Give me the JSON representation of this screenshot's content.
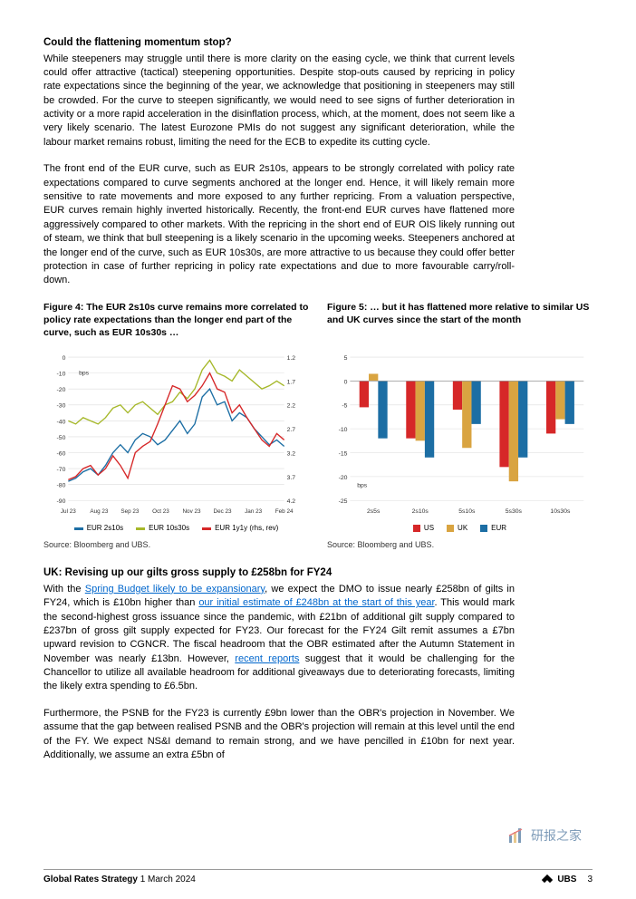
{
  "section1": {
    "heading": "Could the flattening momentum stop?",
    "p1": "While steepeners may struggle until there is more clarity on the easing cycle, we think that current levels could offer attractive (tactical) steepening opportunities. Despite stop-outs caused by repricing in policy rate expectations since the beginning of the year, we acknowledge that positioning in steepeners may still be crowded. For the curve to steepen significantly, we would need to see signs of further deterioration in activity or a more rapid acceleration in the disinflation process, which, at the moment, does not seem like a very likely scenario. The latest Eurozone PMIs do not suggest any significant deterioration, while the labour market remains robust, limiting the need for the ECB to expedite its cutting cycle.",
    "p2": "The front end of the EUR curve, such as EUR 2s10s, appears to be strongly correlated with policy rate expectations compared to curve segments anchored at the longer end. Hence, it will likely remain more sensitive to rate movements and more exposed to any further repricing. From a valuation perspective, EUR curves remain highly inverted historically. Recently, the front-end EUR curves have flattened more aggressively compared to other markets. With the repricing in the short end of EUR OIS likely running out of steam, we think that bull steepening is a likely scenario in the upcoming weeks. Steepeners anchored at the longer end of the curve, such as EUR 10s30s, are more attractive to us because they could offer better protection in case of further repricing in policy rate expectations and due to more favourable carry/roll-down."
  },
  "fig4": {
    "title": "Figure 4: The EUR 2s10s curve remains more correlated to policy rate expectations than the longer end part of the curve, such as EUR 10s30s …",
    "source": "Source: Bloomberg and UBS.",
    "ylabel": "bps",
    "xlabels": [
      "Jul 23",
      "Aug 23",
      "Sep 23",
      "Oct 23",
      "Nov 23",
      "Dec 23",
      "Jan 23",
      "Feb 24"
    ],
    "yticks_left": [
      0,
      -10,
      -20,
      -30,
      -40,
      -50,
      -60,
      -70,
      -80,
      -90
    ],
    "yticks_right": [
      "1.2",
      "1.7",
      "2.2",
      "2.7",
      "3.2",
      "3.7",
      "4.2"
    ],
    "colors": {
      "s1": "#1c6ea4",
      "s2": "#a6b82a",
      "s3": "#d62728"
    },
    "series_labels": [
      "EUR 2s10s",
      "EUR 10s30s",
      "EUR 1y1y (rhs, rev)"
    ],
    "grid_color": "#dcdcdc",
    "s1": [
      -78,
      -76,
      -72,
      -70,
      -74,
      -68,
      -60,
      -55,
      -60,
      -52,
      -48,
      -50,
      -55,
      -52,
      -46,
      -40,
      -48,
      -42,
      -25,
      -20,
      -30,
      -28,
      -40,
      -35,
      -38,
      -45,
      -50,
      -55,
      -52,
      -56
    ],
    "s2": [
      -40,
      -42,
      -38,
      -40,
      -42,
      -38,
      -32,
      -30,
      -35,
      -30,
      -28,
      -32,
      -36,
      -30,
      -28,
      -22,
      -26,
      -20,
      -8,
      -2,
      -10,
      -12,
      -15,
      -8,
      -12,
      -16,
      -20,
      -18,
      -15,
      -18
    ],
    "s3": [
      -77,
      -75,
      -70,
      -68,
      -74,
      -70,
      -62,
      -68,
      -76,
      -60,
      -56,
      -53,
      -42,
      -30,
      -18,
      -20,
      -28,
      -24,
      -18,
      -10,
      -20,
      -22,
      -35,
      -30,
      -38,
      -45,
      -52,
      -56,
      -48,
      -52
    ]
  },
  "fig5": {
    "title": "Figure 5: … but it has flattened more relative to similar US and UK curves since the start of the month",
    "source": "Source: Bloomberg and UBS.",
    "ylabel": "bps",
    "yticks": [
      5,
      0,
      -5,
      -10,
      -15,
      -20,
      -25
    ],
    "categories": [
      "2s5s",
      "2s10s",
      "5s10s",
      "5s30s",
      "10s30s"
    ],
    "colors": {
      "us": "#d62728",
      "uk": "#d9a441",
      "eur": "#1c6ea4"
    },
    "series_labels": [
      "US",
      "UK",
      "EUR"
    ],
    "grid_color": "#dcdcdc",
    "data": {
      "us": [
        -5.5,
        -12,
        -6,
        -18,
        -11
      ],
      "uk": [
        1.5,
        -12.5,
        -14,
        -21,
        -8
      ],
      "eur": [
        -12,
        -16,
        -9,
        -16,
        -9
      ]
    }
  },
  "section2": {
    "heading": "UK: Revising up our gilts gross supply to £258bn for FY24",
    "p1a": "With the ",
    "link1": "Spring Budget likely to be expansionary",
    "p1b": ", we expect the DMO to issue nearly £258bn of gilts in FY24, which is £10bn higher than ",
    "link2": "our initial estimate of £248bn at the start of this year",
    "p1c": ". This would mark the second-highest gross issuance since the pandemic, with £21bn of additional gilt supply compared to £237bn of gross gilt supply expected for FY23. Our forecast for the FY24 Gilt remit assumes a £7bn upward revision to CGNCR. The fiscal headroom that the OBR estimated after the Autumn Statement in November was nearly £13bn. However, ",
    "link3": "recent reports",
    "p1d": " suggest that it would be challenging for the Chancellor to utilize all available headroom for additional giveaways due to deteriorating forecasts, limiting the likely extra spending to £6.5bn.",
    "p2": "Furthermore, the PSNB for the FY23 is currently £9bn lower than the OBR's projection in November. We assume that the gap between realised PSNB and the OBR's projection will remain at this level until the end of the FY. We expect NS&I demand to remain strong, and we have pencilled in £10bn for next year. Additionally, we assume an extra £5bn of"
  },
  "footer": {
    "title": "Global Rates Strategy",
    "date": "1 March 2024",
    "brand": "UBS",
    "page": "3"
  },
  "watermark": "研报之家"
}
